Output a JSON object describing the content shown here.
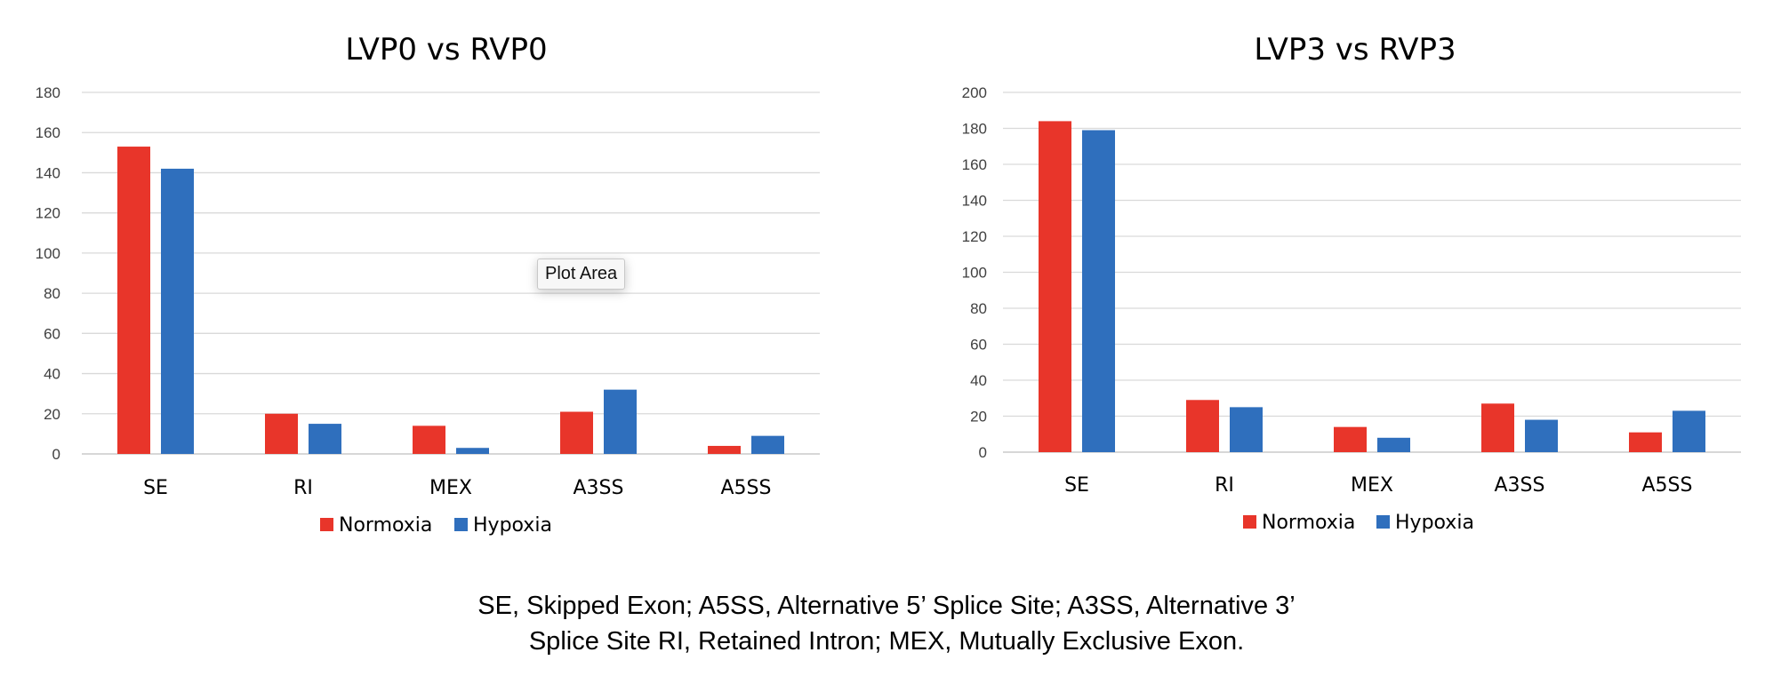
{
  "chart_data": [
    {
      "type": "bar",
      "title": "LVP0 vs RVP0",
      "categories": [
        "SE",
        "RI",
        "MEX",
        "A3SS",
        "A5SS"
      ],
      "series": [
        {
          "name": "Normoxia",
          "values": [
            153,
            20,
            14,
            21,
            4
          ]
        },
        {
          "name": "Hypoxia",
          "values": [
            142,
            15,
            3,
            32,
            9
          ]
        }
      ],
      "ylim": [
        0,
        180
      ],
      "yticks": [
        "0",
        "20",
        "40",
        "60",
        "80",
        "100",
        "120",
        "140",
        "160",
        "180"
      ],
      "grid": true,
      "legend": "bottom"
    },
    {
      "type": "bar",
      "title": "LVP3 vs RVP3",
      "categories": [
        "SE",
        "RI",
        "MEX",
        "A3SS",
        "A5SS"
      ],
      "series": [
        {
          "name": "Normoxia",
          "values": [
            184,
            29,
            14,
            27,
            11
          ]
        },
        {
          "name": "Hypoxia",
          "values": [
            179,
            25,
            8,
            18,
            23
          ]
        }
      ],
      "ylim": [
        0,
        200
      ],
      "yticks": [
        "0",
        "20",
        "40",
        "60",
        "80",
        "100",
        "120",
        "140",
        "160",
        "180",
        "200"
      ],
      "grid": true,
      "legend": "bottom"
    }
  ],
  "colors": {
    "Normoxia": "#e8352a",
    "Hypoxia": "#2f6fbd"
  },
  "tooltip": {
    "label": "Plot Area"
  },
  "caption": {
    "line1": "SE, Skipped Exon; A5SS, Alternative 5’ Splice Site; A3SS, Alternative 3’",
    "line2": "Splice Site RI, Retained Intron; MEX, Mutually Exclusive Exon."
  }
}
